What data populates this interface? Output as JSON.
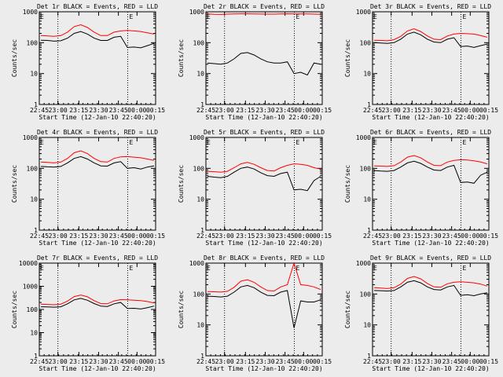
{
  "colors": {
    "background": "#ececec",
    "events": "#000000",
    "lld": "#ff0000",
    "axis": "#000000"
  },
  "chart_data": [
    {
      "type": "line",
      "title": "Det 1r BLACK = Events, RED = LLD",
      "xlabel": "Start Time (12-Jan-10 22:40:20)",
      "ylabel": "Counts/sec",
      "ylim": [
        1,
        1000
      ],
      "yscale": "log",
      "yticks": [
        "1",
        "10",
        "100",
        "1000"
      ],
      "xticks": [
        "22:45",
        "23:00",
        "23:15",
        "23:30",
        "23:45",
        "00:00",
        "00:15"
      ],
      "marker": "E",
      "series": [
        {
          "name": "Events",
          "values": [
            120,
            118,
            112,
            115,
            140,
            200,
            230,
            190,
            140,
            118,
            118,
            150,
            160,
            70,
            72,
            68,
            80,
            95
          ]
        },
        {
          "name": "LLD",
          "values": [
            170,
            165,
            160,
            170,
            220,
            330,
            380,
            310,
            220,
            170,
            170,
            220,
            240,
            250,
            240,
            230,
            210,
            190
          ]
        }
      ]
    },
    {
      "type": "line",
      "title": "Det 2r BLACK = Events, RED = LLD",
      "xlabel": "Start Time (12-Jan-10 22:40:20)",
      "ylabel": "Counts/sec",
      "ylim": [
        1,
        1000
      ],
      "yscale": "log",
      "yticks": [
        "1",
        "10",
        "100",
        "1000"
      ],
      "xticks": [
        "22:45",
        "23:00",
        "23:15",
        "23:30",
        "23:45",
        "00:00",
        "00:15"
      ],
      "marker": "E",
      "series": [
        {
          "name": "Events",
          "values": [
            22,
            21,
            20,
            22,
            30,
            45,
            48,
            40,
            30,
            24,
            22,
            22,
            24,
            10,
            11,
            9,
            22,
            20
          ]
        },
        {
          "name": "LLD",
          "values": [
            850,
            830,
            820,
            840,
            850,
            860,
            860,
            855,
            845,
            840,
            840,
            850,
            860,
            850,
            855,
            850,
            840,
            830
          ]
        }
      ]
    },
    {
      "type": "line",
      "title": "Det 3r BLACK = Events, RED = LLD",
      "xlabel": "Start Time (12-Jan-10 22:40:20)",
      "ylabel": "Counts/sec",
      "ylim": [
        1,
        1000
      ],
      "yscale": "log",
      "yticks": [
        "1",
        "10",
        "100",
        "1000"
      ],
      "xticks": [
        "22:45",
        "23:00",
        "23:15",
        "23:30",
        "23:45",
        "00:00",
        "00:15"
      ],
      "marker": "E",
      "series": [
        {
          "name": "Events",
          "values": [
            100,
            98,
            95,
            100,
            130,
            190,
            220,
            180,
            130,
            105,
            100,
            130,
            145,
            75,
            78,
            70,
            80,
            90
          ]
        },
        {
          "name": "LLD",
          "values": [
            120,
            118,
            115,
            125,
            160,
            240,
            280,
            230,
            165,
            130,
            125,
            165,
            190,
            200,
            195,
            190,
            170,
            150
          ]
        }
      ]
    },
    {
      "type": "line",
      "title": "Det 4r BLACK = Events, RED = LLD",
      "xlabel": "Start Time (12-Jan-10 22:40:20)",
      "ylabel": "Counts/sec",
      "ylim": [
        1,
        1000
      ],
      "yscale": "log",
      "yticks": [
        "1",
        "10",
        "100",
        "1000"
      ],
      "xticks": [
        "22:45",
        "23:00",
        "23:15",
        "23:30",
        "23:45",
        "00:00",
        "00:15"
      ],
      "marker": "E",
      "series": [
        {
          "name": "Events",
          "values": [
            115,
            112,
            110,
            115,
            150,
            210,
            240,
            200,
            150,
            120,
            118,
            150,
            165,
            100,
            105,
            95,
            110,
            120
          ]
        },
        {
          "name": "LLD",
          "values": [
            160,
            155,
            150,
            160,
            210,
            320,
            370,
            300,
            210,
            165,
            160,
            210,
            235,
            240,
            230,
            220,
            200,
            180
          ]
        }
      ]
    },
    {
      "type": "line",
      "title": "Det 5r BLACK = Events, RED = LLD",
      "xlabel": "Start Time (12-Jan-10 22:40:20)",
      "ylabel": "Counts/sec",
      "ylim": [
        1,
        1000
      ],
      "yscale": "log",
      "yticks": [
        "1",
        "10",
        "100",
        "1000"
      ],
      "xticks": [
        "22:45",
        "23:00",
        "23:15",
        "23:30",
        "23:45",
        "00:00",
        "00:15"
      ],
      "marker": "E",
      "series": [
        {
          "name": "Events",
          "values": [
            55,
            52,
            50,
            55,
            75,
            100,
            110,
            95,
            72,
            58,
            55,
            68,
            75,
            20,
            21,
            19,
            40,
            55
          ]
        },
        {
          "name": "LLD",
          "values": [
            80,
            78,
            75,
            80,
            105,
            140,
            155,
            135,
            105,
            85,
            82,
            105,
            125,
            140,
            135,
            125,
            105,
            95
          ]
        }
      ]
    },
    {
      "type": "line",
      "title": "Det 6r BLACK = Events, RED = LLD",
      "xlabel": "Start Time (12-Jan-10 22:40:20)",
      "ylabel": "Counts/sec",
      "ylim": [
        1,
        1000
      ],
      "yscale": "log",
      "yticks": [
        "1",
        "10",
        "100",
        "1000"
      ],
      "xticks": [
        "22:45",
        "23:00",
        "23:15",
        "23:30",
        "23:45",
        "00:00",
        "00:15"
      ],
      "marker": "E",
      "series": [
        {
          "name": "Events",
          "values": [
            85,
            82,
            80,
            85,
            110,
            150,
            170,
            145,
            110,
            88,
            85,
            110,
            125,
            35,
            36,
            33,
            60,
            75
          ]
        },
        {
          "name": "LLD",
          "values": [
            120,
            118,
            115,
            122,
            160,
            230,
            260,
            220,
            160,
            125,
            122,
            160,
            180,
            190,
            185,
            175,
            160,
            140
          ]
        }
      ]
    },
    {
      "type": "line",
      "title": "Det 7r BLACK = Events, RED = LLD",
      "xlabel": "Start Time (12-Jan-10 22:40:20)",
      "ylabel": "Counts/sec",
      "ylim": [
        1,
        10000
      ],
      "yscale": "log",
      "yticks": [
        "1",
        "10",
        "100",
        "1000",
        "10000"
      ],
      "xticks": [
        "22:45",
        "23:00",
        "23:15",
        "23:30",
        "23:45",
        "00:00",
        "00:15"
      ],
      "marker": "E",
      "series": [
        {
          "name": "Events",
          "values": [
            130,
            128,
            125,
            130,
            175,
            260,
            300,
            250,
            180,
            140,
            135,
            175,
            200,
            110,
            112,
            105,
            120,
            140
          ]
        },
        {
          "name": "LLD",
          "values": [
            170,
            165,
            160,
            170,
            230,
            360,
            420,
            350,
            240,
            180,
            175,
            235,
            265,
            260,
            250,
            240,
            220,
            190
          ]
        }
      ]
    },
    {
      "type": "line",
      "title": "Det 8r BLACK = Events, RED = LLD",
      "xlabel": "Start Time (12-Jan-10 22:40:20)",
      "ylabel": "Counts/sec",
      "ylim": [
        1,
        1000
      ],
      "yscale": "log",
      "yticks": [
        "1",
        "10",
        "100",
        "1000"
      ],
      "xticks": [
        "22:45",
        "23:00",
        "23:15",
        "23:30",
        "23:45",
        "00:00",
        "00:15"
      ],
      "marker": "E",
      "series": [
        {
          "name": "Events",
          "values": [
            85,
            83,
            80,
            85,
            115,
            170,
            190,
            160,
            115,
            90,
            88,
            115,
            130,
            8,
            60,
            55,
            55,
            65
          ]
        },
        {
          "name": "LLD",
          "values": [
            120,
            118,
            115,
            122,
            165,
            260,
            290,
            240,
            170,
            130,
            125,
            170,
            200,
            1000,
            200,
            190,
            170,
            140
          ]
        }
      ]
    },
    {
      "type": "line",
      "title": "Det 9r BLACK = Events, RED = LLD",
      "xlabel": "Start Time (12-Jan-10 22:40:20)",
      "ylabel": "Counts/sec",
      "ylim": [
        1,
        1000
      ],
      "yscale": "log",
      "yticks": [
        "1",
        "10",
        "100",
        "1000"
      ],
      "xticks": [
        "22:45",
        "23:00",
        "23:15",
        "23:30",
        "23:45",
        "00:00",
        "00:15"
      ],
      "marker": "E",
      "series": [
        {
          "name": "Events",
          "values": [
            130,
            128,
            125,
            130,
            170,
            240,
            270,
            230,
            170,
            140,
            135,
            170,
            190,
            90,
            95,
            88,
            100,
            110
          ]
        },
        {
          "name": "LLD",
          "values": [
            160,
            155,
            150,
            160,
            210,
            320,
            370,
            310,
            220,
            170,
            165,
            215,
            240,
            250,
            240,
            230,
            210,
            180
          ]
        }
      ]
    }
  ]
}
